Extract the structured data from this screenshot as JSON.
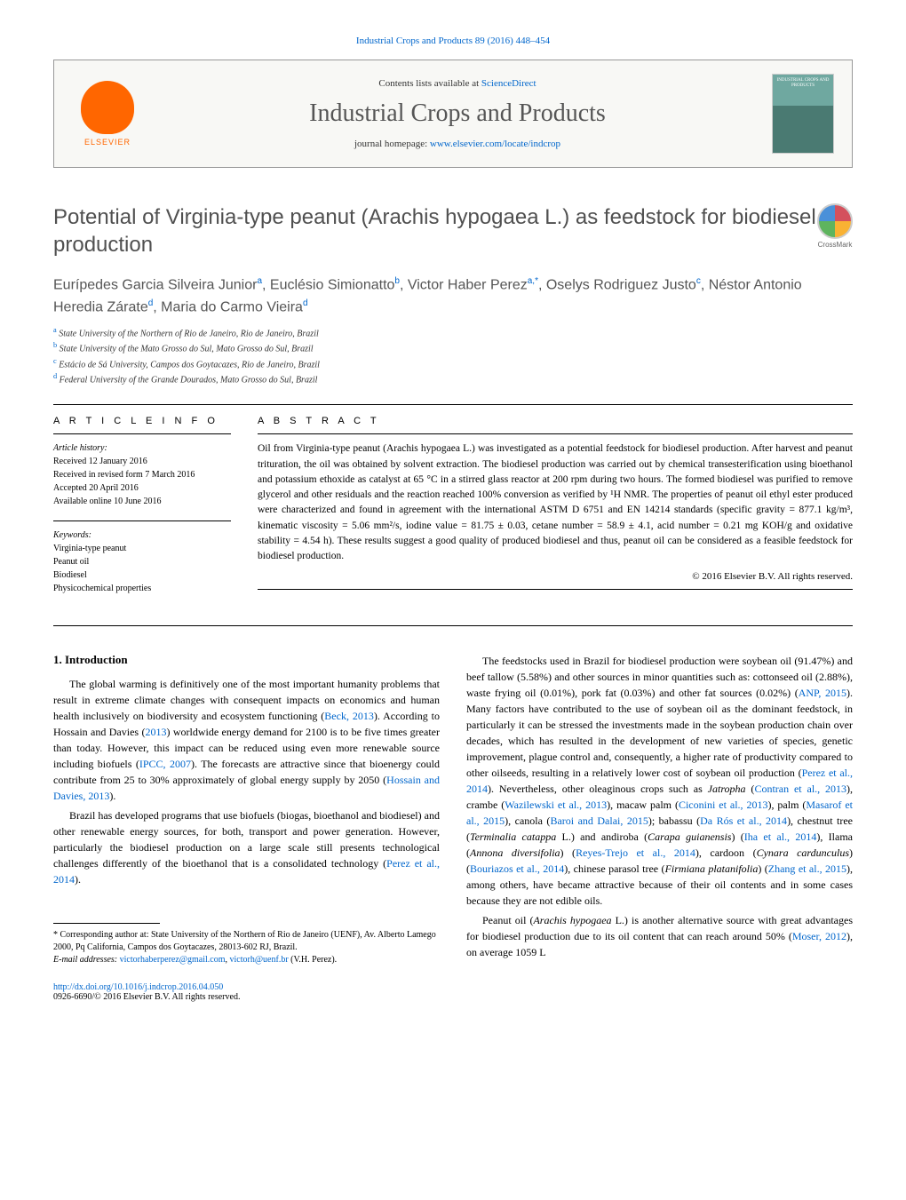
{
  "journal_ref": "Industrial Crops and Products 89 (2016) 448–454",
  "header": {
    "contents_prefix": "Contents lists available at ",
    "contents_link": "ScienceDirect",
    "journal_name": "Industrial Crops and Products",
    "homepage_prefix": "journal homepage: ",
    "homepage_link": "www.elsevier.com/locate/indcrop",
    "elsevier_label": "ELSEVIER",
    "cover_label": "INDUSTRIAL CROPS AND PRODUCTS",
    "crossmark": "CrossMark"
  },
  "title": "Potential of Virginia-type peanut (Arachis hypogaea L.) as feedstock for biodiesel production",
  "authors_html": "Eurípedes Garcia Silveira Junior<sup>a</sup>, Euclésio Simionatto<sup>b</sup>, Victor Haber Perez<sup>a,*</sup>, Oselys Rodriguez Justo<sup>c</sup>, Néstor Antonio Heredia Zárate<sup>d</sup>, Maria do Carmo Vieira<sup>d</sup>",
  "affiliations": [
    {
      "sup": "a",
      "text": "State University of the Northern of Rio de Janeiro, Rio de Janeiro, Brazil"
    },
    {
      "sup": "b",
      "text": "State University of the Mato Grosso do Sul, Mato Grosso do Sul, Brazil"
    },
    {
      "sup": "c",
      "text": "Estácio de Sá University, Campos dos Goytacazes, Rio de Janeiro, Brazil"
    },
    {
      "sup": "d",
      "text": "Federal University of the Grande Dourados, Mato Grosso do Sul, Brazil"
    }
  ],
  "article_info": {
    "heading": "A R T I C L E  I N F O",
    "history_label": "Article history:",
    "history": [
      "Received 12 January 2016",
      "Received in revised form 7 March 2016",
      "Accepted 20 April 2016",
      "Available online 10 June 2016"
    ],
    "keywords_label": "Keywords:",
    "keywords": [
      "Virginia-type peanut",
      "Peanut oil",
      "Biodiesel",
      "Physicochemical properties"
    ]
  },
  "abstract": {
    "heading": "A B S T R A C T",
    "text": "Oil from Virginia-type peanut (Arachis hypogaea L.) was investigated as a potential feedstock for biodiesel production. After harvest and peanut trituration, the oil was obtained by solvent extraction. The biodiesel production was carried out by chemical transesterification using bioethanol and potassium ethoxide as catalyst at 65 °C in a stirred glass reactor at 200 rpm during two hours. The formed biodiesel was purified to remove glycerol and other residuals and the reaction reached 100% conversion as verified by ¹H NMR. The properties of peanut oil ethyl ester produced were characterized and found in agreement with the international ASTM D 6751 and EN 14214 standards (specific gravity = 877.1 kg/m³, kinematic viscosity = 5.06 mm²/s, iodine value = 81.75 ± 0.03, cetane number = 58.9 ± 4.1, acid number = 0.21 mg KOH/g and oxidative stability = 4.54 h). These results suggest a good quality of produced biodiesel and thus, peanut oil can be considered as a feasible feedstock for biodiesel production.",
    "copyright": "© 2016 Elsevier B.V. All rights reserved."
  },
  "body": {
    "intro_heading": "1. Introduction",
    "left": [
      "The global warming is definitively one of the most important humanity problems that result in extreme climate changes with consequent impacts on economics and human health inclusively on biodiversity and ecosystem functioning (Beck, 2013). According to Hossain and Davies (2013) worldwide energy demand for 2100 is to be five times greater than today. However, this impact can be reduced using even more renewable source including biofuels (IPCC, 2007). The forecasts are attractive since that bioenergy could contribute from 25 to 30% approximately of global energy supply by 2050 (Hossain and Davies, 2013).",
      "Brazil has developed programs that use biofuels (biogas, bioethanol and biodiesel) and other renewable energy sources, for both, transport and power generation. However, particularly the biodiesel production on a large scale still presents technological challenges differently of the bioethanol that is a consolidated technology (Perez et al., 2014)."
    ],
    "right": [
      "The feedstocks used in Brazil for biodiesel production were soybean oil (91.47%) and beef tallow (5.58%) and other sources in minor quantities such as: cottonseed oil (2.88%), waste frying oil (0.01%), pork fat (0.03%) and other fat sources (0.02%) (ANP, 2015). Many factors have contributed to the use of soybean oil as the dominant feedstock, in particularly it can be stressed the investments made in the soybean production chain over decades, which has resulted in the development of new varieties of species, genetic improvement, plague control and, consequently, a higher rate of productivity compared to other oilseeds, resulting in a relatively lower cost of soybean oil production (Perez et al., 2014). Nevertheless, other oleaginous crops such as Jatropha (Contran et al., 2013), crambe (Wazilewski et al., 2013), macaw palm (Ciconini et al., 2013), palm (Masarof et al., 2015), canola (Baroi and Dalai, 2015); babassu (Da Rós et al., 2014), chestnut tree (Terminalia catappa L.) and andiroba (Carapa guianensis) (Iha et al., 2014), Ilama (Annona diversifolia) (Reyes-Trejo et al., 2014), cardoon (Cynara cardunculus) (Bouriazos et al., 2014), chinese parasol tree (Firmiana platanifolia) (Zhang et al., 2015), among others, have became attractive because of their oil contents and in some cases because they are not edible oils.",
      "Peanut oil (Arachis hypogaea L.) is another alternative source with great advantages for biodiesel production due to its oil content that can reach around 50% (Moser, 2012), on average 1059 L"
    ]
  },
  "footnote": {
    "corresponding_marker": "*",
    "corresponding_text": "Corresponding author at: State University of the Northern of Rio de Janeiro (UENF), Av. Alberto Lamego 2000, Pq California, Campos dos Goytacazes, 28013-602 RJ, Brazil.",
    "email_label": "E-mail addresses:",
    "email1": "victorhaberperez@gmail.com",
    "email2": "victorh@uenf.br",
    "email_author": "(V.H. Perez)."
  },
  "doi": {
    "url": "http://dx.doi.org/10.1016/j.indcrop.2016.04.050",
    "issn_line": "0926-6690/© 2016 Elsevier B.V. All rights reserved."
  },
  "colors": {
    "link": "#0066cc",
    "elsevier_orange": "#ff6600",
    "text_gray": "#505050"
  }
}
